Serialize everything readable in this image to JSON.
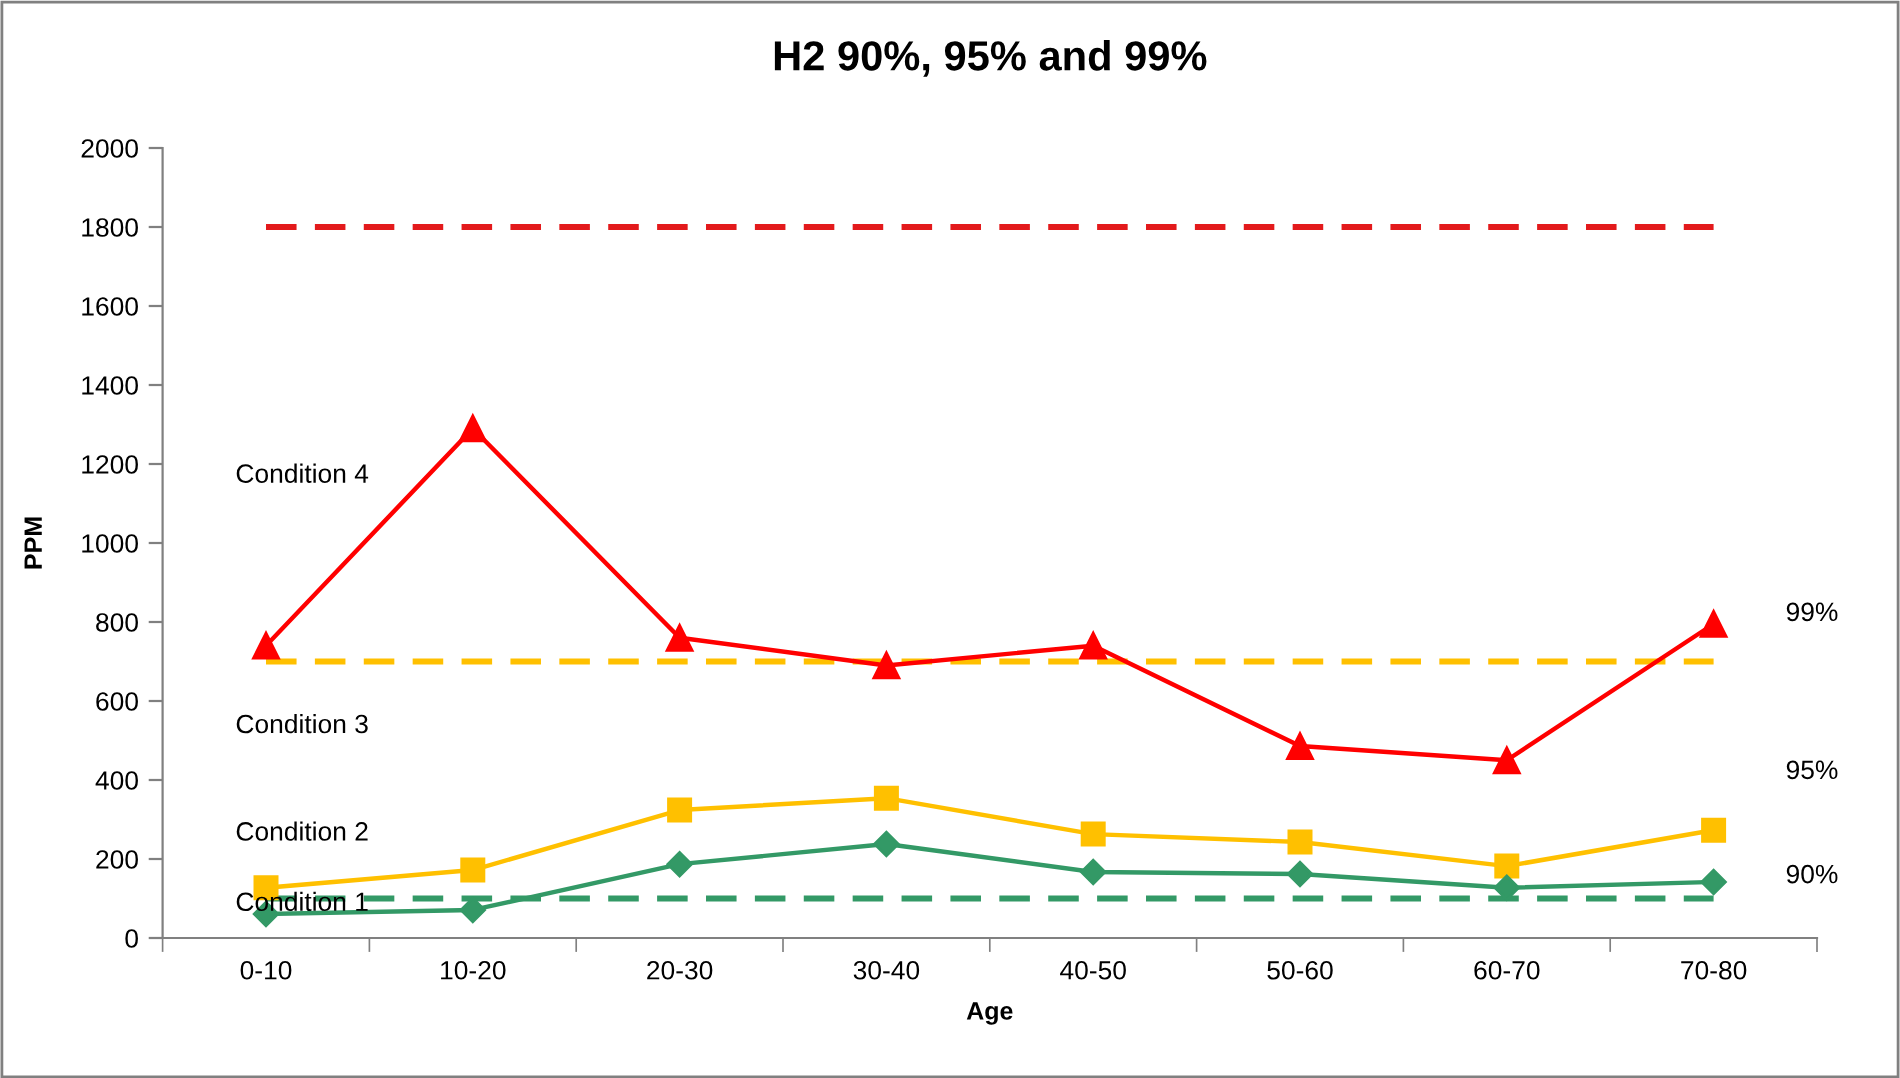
{
  "chart_data": {
    "type": "line",
    "title": "H2 90%, 95% and 99%",
    "xlabel": "Age",
    "ylabel": "PPM",
    "categories": [
      "0-10",
      "10-20",
      "20-30",
      "30-40",
      "40-50",
      "50-60",
      "60-70",
      "70-80"
    ],
    "series": [
      {
        "color": "#ff0000",
        "marker": "triangle",
        "values": [
          740,
          1290,
          760,
          690,
          740,
          486,
          450,
          795
        ]
      },
      {
        "color": "#ffc000",
        "marker": "square",
        "values": [
          127,
          172,
          324,
          354,
          263,
          243,
          182,
          273
        ]
      },
      {
        "color": "#339966",
        "marker": "diamond",
        "values": [
          61,
          71,
          187,
          238,
          167,
          162,
          127,
          142
        ]
      }
    ],
    "ref_lines": [
      {
        "axis": "y",
        "value": 1800,
        "color": "#e31a1c",
        "line_style": "dashed"
      },
      {
        "axis": "y",
        "value": 700,
        "color": "#ffc000",
        "line_style": "dashed"
      },
      {
        "axis": "y",
        "value": 100,
        "color": "#339966",
        "line_style": "dashed"
      }
    ],
    "annotations": [
      "Condition 4",
      "Condition 3",
      "Condition 2",
      "Condition 1",
      "99%",
      "95%",
      "90%"
    ],
    "ylim": [
      0,
      2000
    ],
    "yticks": [
      0,
      200,
      400,
      600,
      800,
      1000,
      1200,
      1400,
      1600,
      1800,
      2000
    ],
    "grid": false,
    "legend": false,
    "line_style": "solid"
  }
}
